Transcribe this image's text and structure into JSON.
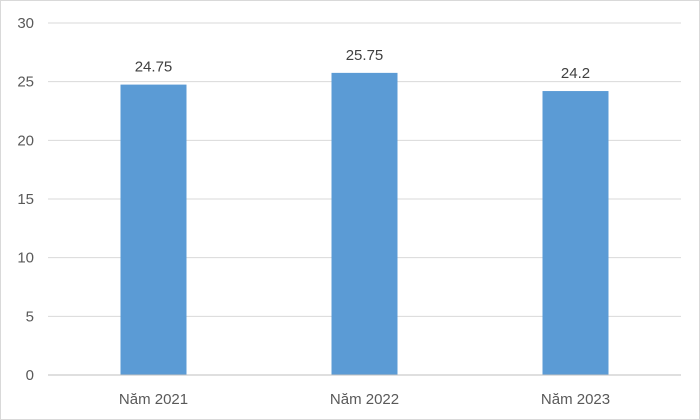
{
  "chart_data": {
    "type": "bar",
    "categories": [
      "Năm 2021",
      "Năm 2022",
      "Năm 2023"
    ],
    "values": [
      24.75,
      25.75,
      24.2
    ],
    "data_labels": [
      "24.75",
      "25.75",
      "24.2"
    ],
    "title": "",
    "xlabel": "",
    "ylabel": "",
    "ylim": [
      0,
      30
    ],
    "y_ticks": [
      0,
      5,
      10,
      15,
      20,
      25,
      30
    ],
    "y_tick_labels": [
      "0",
      "5",
      "10",
      "15",
      "20",
      "25",
      "30"
    ],
    "grid": true,
    "legend": "none",
    "bar_color": "#5b9bd5"
  }
}
